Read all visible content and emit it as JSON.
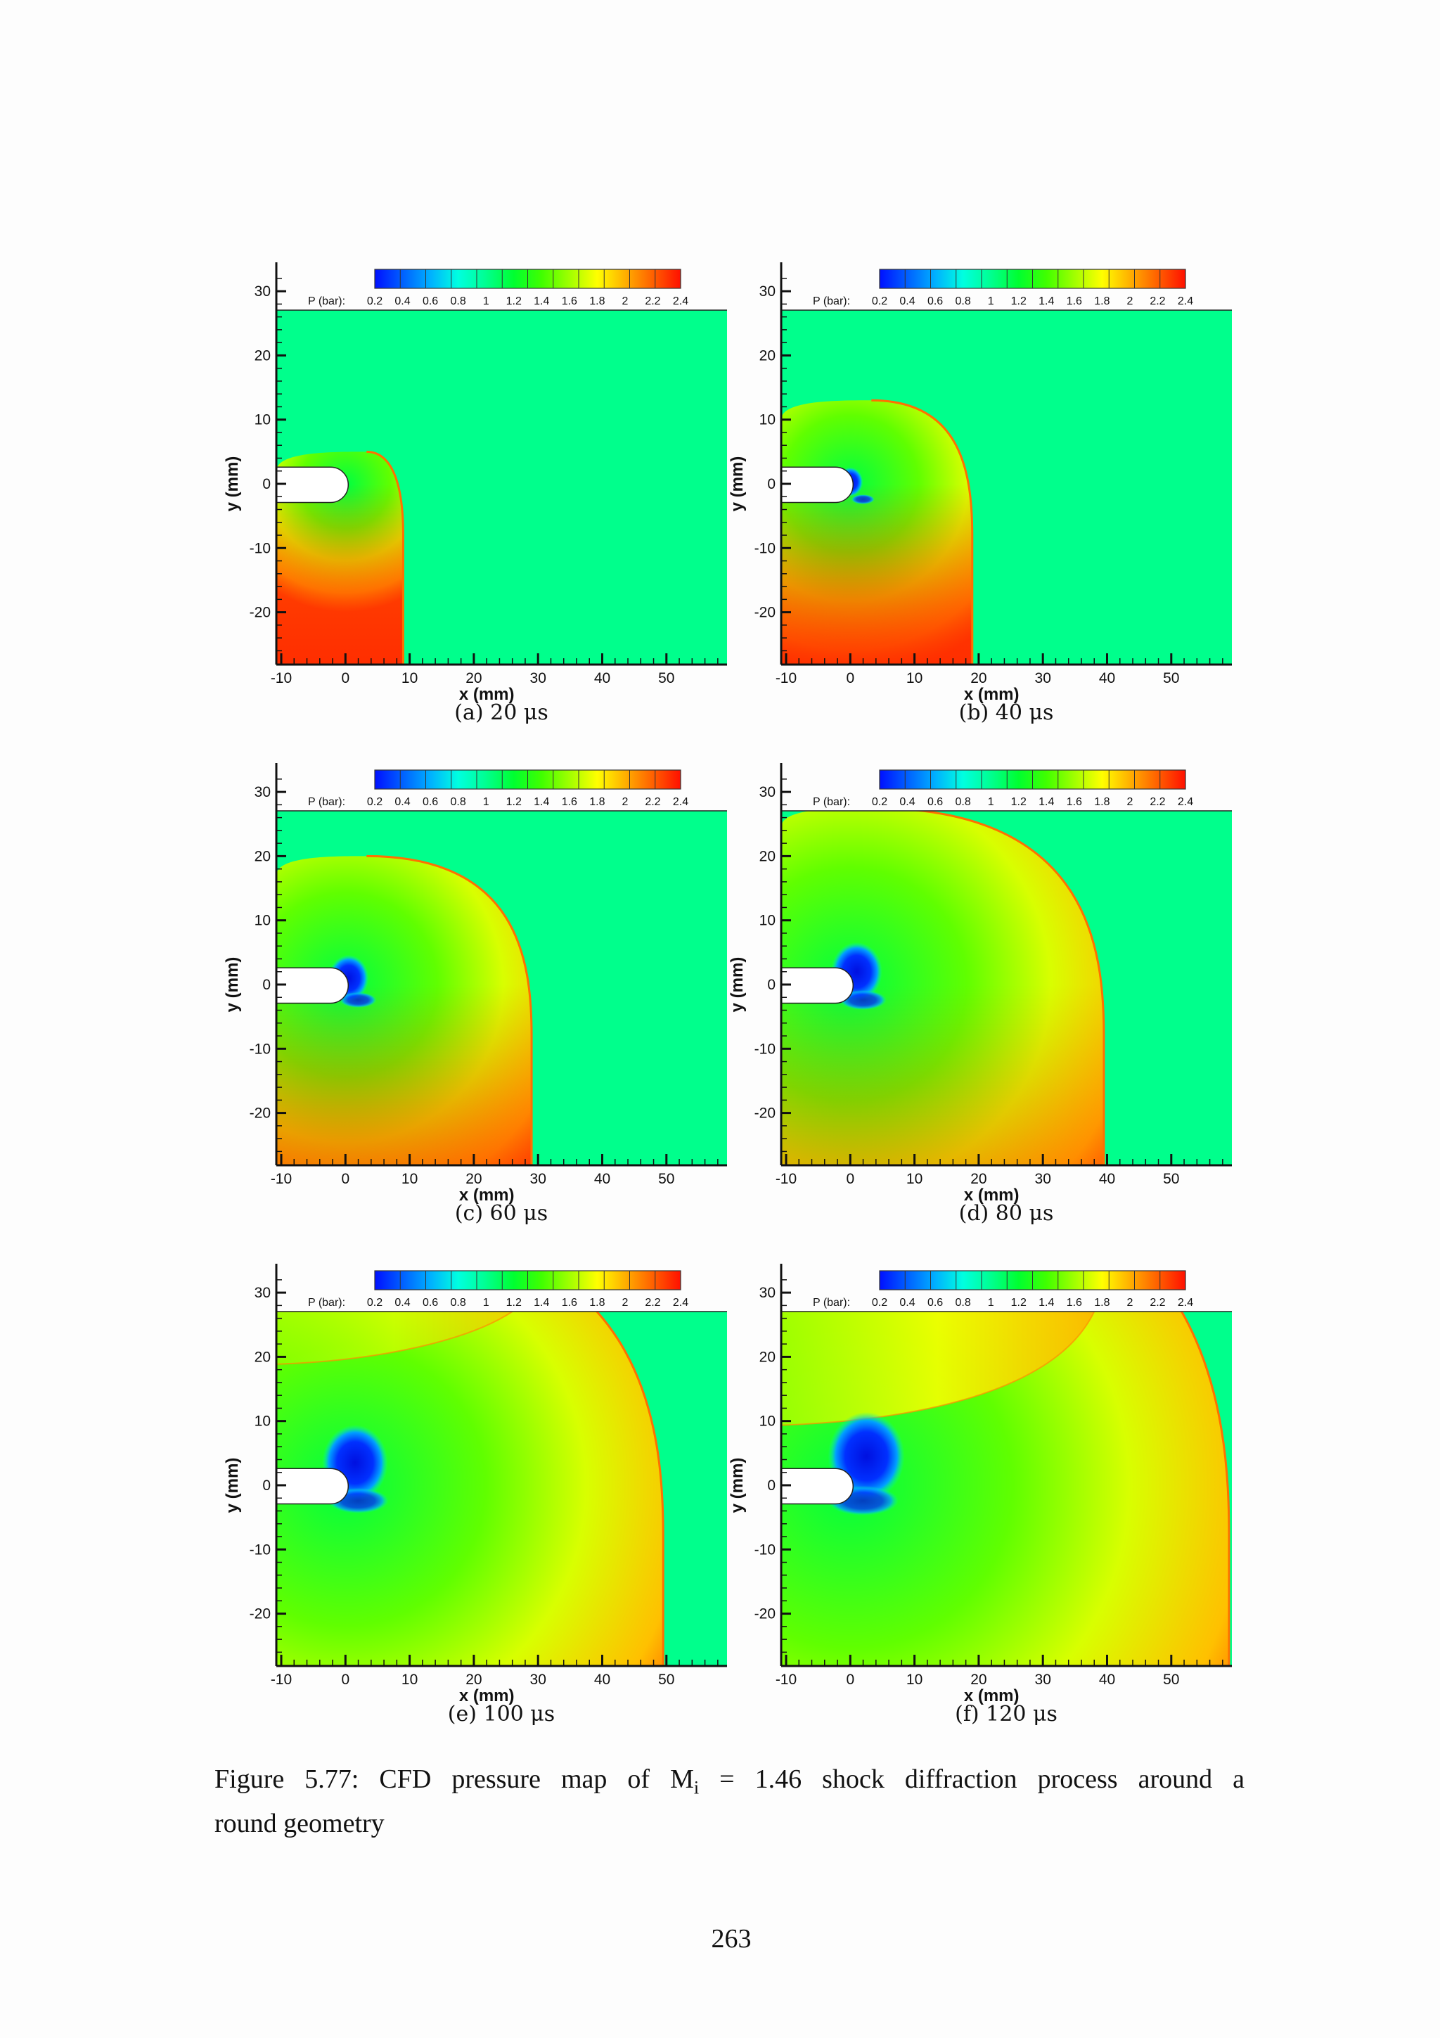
{
  "figure": {
    "number": "Figure 5.77:",
    "caption_line1": "CFD pressure map of M",
    "caption_subscript": "i",
    "caption_rest1": " = 1.46 shock diffraction process around a",
    "caption_line2": "round geometry"
  },
  "page_number": "263",
  "colorbar": {
    "label": "P (bar):",
    "ticks": [
      "0.2",
      "0.4",
      "0.6",
      "0.8",
      "1",
      "1.2",
      "1.4",
      "1.6",
      "1.8",
      "2",
      "2.2",
      "2.4"
    ],
    "colors": [
      "#0010ff",
      "#0060ff",
      "#00b0ff",
      "#00ffe0",
      "#00ff90",
      "#00ff30",
      "#40ff00",
      "#a0ff00",
      "#ffff00",
      "#ffb000",
      "#ff6000",
      "#ff1000"
    ]
  },
  "axes": {
    "xlabel": "x (mm)",
    "ylabel": "y (mm)",
    "xticks": [
      "-10",
      "0",
      "10",
      "20",
      "30",
      "40",
      "50"
    ],
    "yticks": [
      "30",
      "20",
      "10",
      "0",
      "-10",
      "-20"
    ]
  },
  "panels": [
    {
      "id": "a",
      "caption": "(a) 20 μs",
      "time_us": 20,
      "shock_x_mm": 9
    },
    {
      "id": "b",
      "caption": "(b) 40 μs",
      "time_us": 40,
      "shock_x_mm": 19
    },
    {
      "id": "c",
      "caption": "(c) 60 μs",
      "time_us": 60,
      "shock_x_mm": 29
    },
    {
      "id": "d",
      "caption": "(d) 80 μs",
      "time_us": 80,
      "shock_x_mm": 39.5
    },
    {
      "id": "e",
      "caption": "(e) 100 μs",
      "time_us": 100,
      "shock_x_mm": 49.5
    },
    {
      "id": "f",
      "caption": "(f) 120 μs",
      "time_us": 120,
      "shock_x_mm": 59
    }
  ],
  "chart_data": [
    {
      "type": "heatmap",
      "title": "(a) 20 μs",
      "xlabel": "x (mm)",
      "ylabel": "y (mm)",
      "xlim": [
        -11,
        60
      ],
      "ylim": [
        -28,
        27
      ],
      "colorbar_label": "P (bar)",
      "colorbar_range": [
        0.2,
        2.4
      ],
      "ambient_pressure_bar": 1.0,
      "incident_shock_x_mm": 9,
      "diffracted_front_top_y_mm": 5,
      "notes": "High pressure (~2.3 bar) region below wall, diffracted shock curling over rounded wall tip"
    },
    {
      "type": "heatmap",
      "title": "(b) 40 μs",
      "xlabel": "x (mm)",
      "ylabel": "y (mm)",
      "xlim": [
        -11,
        60
      ],
      "ylim": [
        -28,
        27
      ],
      "colorbar_label": "P (bar)",
      "colorbar_range": [
        0.2,
        2.4
      ],
      "incident_shock_x_mm": 19,
      "diffracted_front_top_y_mm": 13,
      "min_pressure_bar": 0.2,
      "notes": "Low-pressure vortex forming at wall tip (x~0, y~0)"
    },
    {
      "type": "heatmap",
      "title": "(c) 60 μs",
      "xlabel": "x (mm)",
      "ylabel": "y (mm)",
      "xlim": [
        -11,
        60
      ],
      "ylim": [
        -28,
        27
      ],
      "colorbar_label": "P (bar)",
      "colorbar_range": [
        0.2,
        2.4
      ],
      "incident_shock_x_mm": 29,
      "diffracted_front_top_y_mm": 20,
      "notes": "Vortex grows near (1, 1); expansion fan visible"
    },
    {
      "type": "heatmap",
      "title": "(d) 80 μs",
      "xlabel": "x (mm)",
      "ylabel": "y (mm)",
      "xlim": [
        -11,
        60
      ],
      "ylim": [
        -28,
        27
      ],
      "colorbar_label": "P (bar)",
      "colorbar_range": [
        0.2,
        2.4
      ],
      "incident_shock_x_mm": 39.5,
      "diffracted_front_top_y_mm": 27,
      "notes": "Diffracted shock reaches upper boundary"
    },
    {
      "type": "heatmap",
      "title": "(e) 100 μs",
      "xlabel": "x (mm)",
      "ylabel": "y (mm)",
      "xlim": [
        -11,
        60
      ],
      "ylim": [
        -28,
        27
      ],
      "colorbar_label": "P (bar)",
      "colorbar_range": [
        0.2,
        2.4
      ],
      "incident_shock_x_mm": 49.5,
      "reflected_shock_top_x_mm": 26,
      "notes": "Shock reflected from upper wall; vortex at (2, 4)"
    },
    {
      "type": "heatmap",
      "title": "(f) 120 μs",
      "xlabel": "x (mm)",
      "ylabel": "y (mm)",
      "xlim": [
        -11,
        60
      ],
      "ylim": [
        -28,
        27
      ],
      "colorbar_label": "P (bar)",
      "colorbar_range": [
        0.2,
        2.4
      ],
      "incident_shock_x_mm": 59,
      "reflected_shock_top_x_mm": 38,
      "notes": "Reflected shock descends to y~10; vortex at (3, 5)"
    }
  ]
}
